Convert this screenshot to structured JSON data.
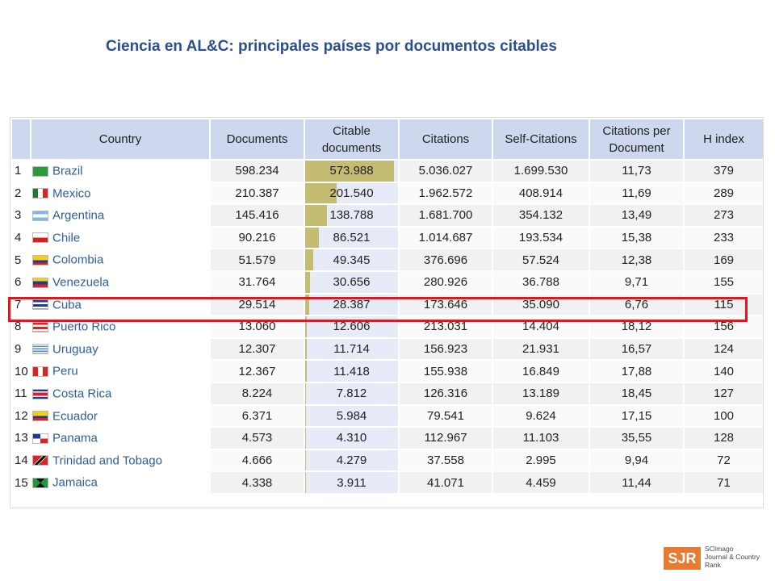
{
  "title": "Ciencia en AL&C: principales países por documentos citables",
  "table": {
    "headers": {
      "country": "Country",
      "documents": "Documents",
      "citable_1": "Citable",
      "citable_2": "documents",
      "citations": "Citations",
      "self_citations": "Self-Citations",
      "cpd_1": "Citations per",
      "cpd_2": "Document",
      "h_index": "H index"
    },
    "rows": [
      {
        "rank": "1",
        "country": "Brazil",
        "flag": "flag-brazil-icon",
        "documents": "598.234",
        "citable": "573.988",
        "citable_value": 573988,
        "citations": "5.036.027",
        "self_citations": "1.699.530",
        "cpd": "11,73",
        "h": "379"
      },
      {
        "rank": "2",
        "country": "Mexico",
        "flag": "flag-mexico-icon",
        "documents": "210.387",
        "citable": "201.540",
        "citable_value": 201540,
        "citations": "1.962.572",
        "self_citations": "408.914",
        "cpd": "11,69",
        "h": "289"
      },
      {
        "rank": "3",
        "country": "Argentina",
        "flag": "flag-argentina-icon",
        "documents": "145.416",
        "citable": "138.788",
        "citable_value": 138788,
        "citations": "1.681.700",
        "self_citations": "354.132",
        "cpd": "13,49",
        "h": "273"
      },
      {
        "rank": "4",
        "country": "Chile",
        "flag": "flag-chile-icon",
        "documents": "90.216",
        "citable": "86.521",
        "citable_value": 86521,
        "citations": "1.014.687",
        "self_citations": "193.534",
        "cpd": "15,38",
        "h": "233"
      },
      {
        "rank": "5",
        "country": "Colombia",
        "flag": "flag-colombia-icon",
        "documents": "51.579",
        "citable": "49.345",
        "citable_value": 49345,
        "citations": "376.696",
        "self_citations": "57.524",
        "cpd": "12,38",
        "h": "169"
      },
      {
        "rank": "6",
        "country": "Venezuela",
        "flag": "flag-venezuela-icon",
        "documents": "31.764",
        "citable": "30.656",
        "citable_value": 30656,
        "citations": "280.926",
        "self_citations": "36.788",
        "cpd": "9,71",
        "h": "155"
      },
      {
        "rank": "7",
        "country": "Cuba",
        "flag": "flag-cuba-icon",
        "documents": "29.514",
        "citable": "28.387",
        "citable_value": 28387,
        "citations": "173.646",
        "self_citations": "35.090",
        "cpd": "6,76",
        "h": "115"
      },
      {
        "rank": "8",
        "country": "Puerto Rico",
        "flag": "flag-puerto-rico-icon",
        "documents": "13.060",
        "citable": "12.606",
        "citable_value": 12606,
        "citations": "213.031",
        "self_citations": "14.404",
        "cpd": "18,12",
        "h": "156"
      },
      {
        "rank": "9",
        "country": "Uruguay",
        "flag": "flag-uruguay-icon",
        "documents": "12.307",
        "citable": "11.714",
        "citable_value": 11714,
        "citations": "156.923",
        "self_citations": "21.931",
        "cpd": "16,57",
        "h": "124"
      },
      {
        "rank": "10",
        "country": "Peru",
        "flag": "flag-peru-icon",
        "documents": "12.367",
        "citable": "11.418",
        "citable_value": 11418,
        "citations": "155.938",
        "self_citations": "16.849",
        "cpd": "17,88",
        "h": "140"
      },
      {
        "rank": "11",
        "country": "Costa Rica",
        "flag": "flag-costa-rica-icon",
        "documents": "8.224",
        "citable": "7.812",
        "citable_value": 7812,
        "citations": "126.316",
        "self_citations": "13.189",
        "cpd": "18,45",
        "h": "127"
      },
      {
        "rank": "12",
        "country": "Ecuador",
        "flag": "flag-ecuador-icon",
        "documents": "6.371",
        "citable": "5.984",
        "citable_value": 5984,
        "citations": "79.541",
        "self_citations": "9.624",
        "cpd": "17,15",
        "h": "100"
      },
      {
        "rank": "13",
        "country": "Panama",
        "flag": "flag-panama-icon",
        "documents": "4.573",
        "citable": "4.310",
        "citable_value": 4310,
        "citations": "112.967",
        "self_citations": "11.103",
        "cpd": "35,55",
        "h": "128"
      },
      {
        "rank": "14",
        "country": "Trinidad and Tobago",
        "flag": "flag-trinidad-and-tobago-icon",
        "documents": "4.666",
        "citable": "4.279",
        "citable_value": 4279,
        "citations": "37.558",
        "self_citations": "2.995",
        "cpd": "9,94",
        "h": "72"
      },
      {
        "rank": "15",
        "country": "Jamaica",
        "flag": "flag-jamaica-icon",
        "documents": "4.338",
        "citable": "3.911",
        "citable_value": 3911,
        "citations": "41.071",
        "self_citations": "4.459",
        "cpd": "11,44",
        "h": "71"
      }
    ],
    "highlighted_country": "Cuba",
    "colors": {
      "bar": "#c5bc74",
      "header": "#cdd8ee",
      "link": "#2d5e9a",
      "highlight": "#e8141c"
    }
  },
  "logo": {
    "mark": "SJR",
    "line1": "SCImago",
    "line2": "Journal & Country",
    "line3": "Rank",
    "color": "#e67b31"
  }
}
